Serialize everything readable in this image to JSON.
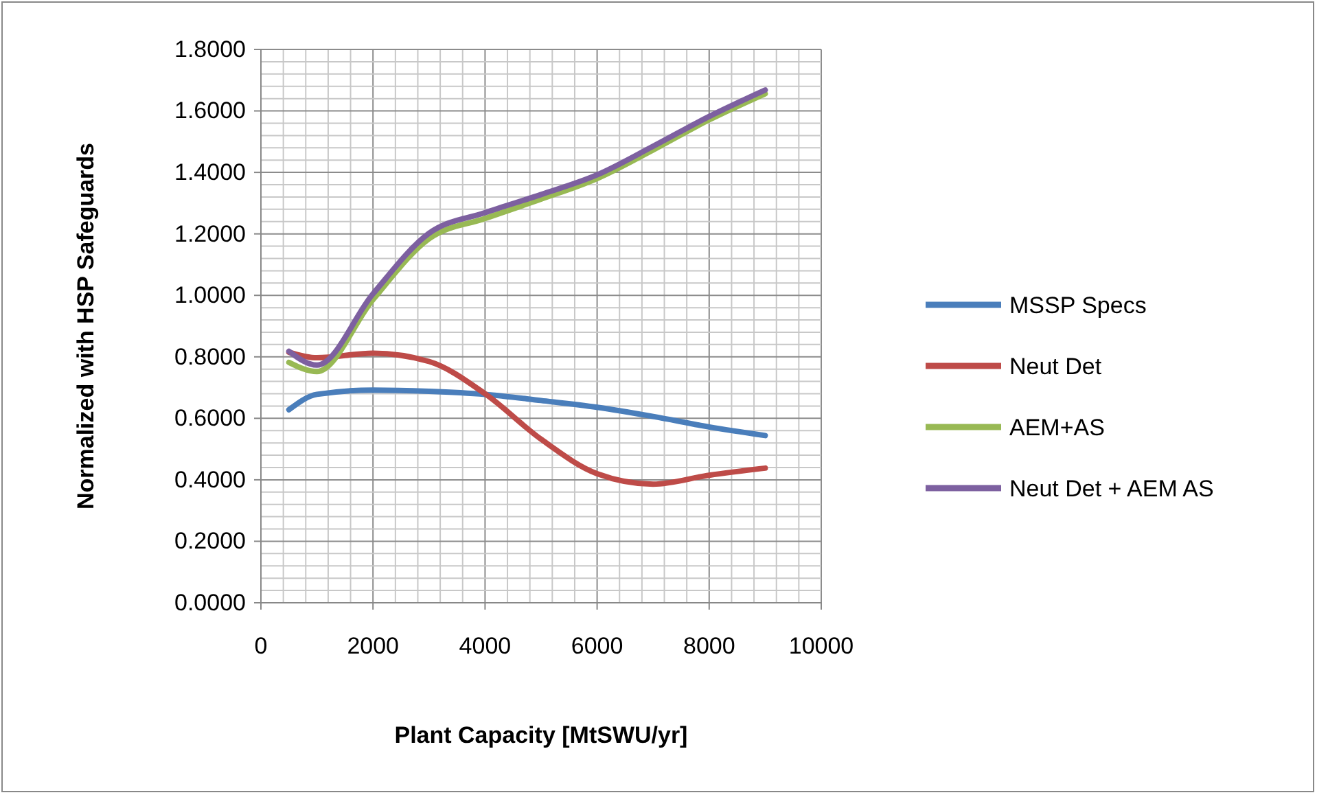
{
  "chart_data": {
    "type": "line",
    "xlabel": "Plant Capacity [MtSWU/yr]",
    "ylabel": "Normalized with HSP Safeguards",
    "x": [
      500,
      1000,
      2000,
      3000,
      4000,
      5000,
      6000,
      7000,
      8000,
      9000
    ],
    "series": [
      {
        "name": "MSSP Specs",
        "color": "#4a7ebb",
        "values": [
          0.628,
          0.678,
          0.692,
          0.688,
          0.678,
          0.658,
          0.636,
          0.606,
          0.572,
          0.544
        ]
      },
      {
        "name": "Neut Det",
        "color": "#be4b48",
        "values": [
          0.815,
          0.797,
          0.812,
          0.785,
          0.68,
          0.532,
          0.42,
          0.386,
          0.415,
          0.438
        ]
      },
      {
        "name": "AEM+AS",
        "color": "#98b954",
        "values": [
          0.782,
          0.752,
          0.986,
          1.184,
          1.25,
          1.313,
          1.38,
          1.473,
          1.571,
          1.656
        ]
      },
      {
        "name": "Neut Det + AEM AS",
        "color": "#7d60a0",
        "values": [
          0.818,
          0.773,
          1.005,
          1.202,
          1.269,
          1.328,
          1.392,
          1.485,
          1.582,
          1.668
        ]
      }
    ],
    "xlim": [
      0,
      10000
    ],
    "xticks": [
      0,
      2000,
      4000,
      6000,
      8000,
      10000
    ],
    "ylim": [
      0,
      1.8
    ],
    "yticks": [
      {
        "value": 0,
        "label": "0.0000"
      },
      {
        "value": 0.2,
        "label": "0.2000"
      },
      {
        "value": 0.4,
        "label": "0.4000"
      },
      {
        "value": 0.6,
        "label": "0.6000"
      },
      {
        "value": 0.8,
        "label": "0.8000"
      },
      {
        "value": 1,
        "label": "1.0000"
      },
      {
        "value": 1.2,
        "label": "1.2000"
      },
      {
        "value": 1.4,
        "label": "1.4000"
      },
      {
        "value": 1.6,
        "label": "1.6000"
      },
      {
        "value": 1.8,
        "label": "1.8000"
      }
    ],
    "grid": true,
    "legend": "right",
    "marker": "none",
    "line_style": "solid"
  }
}
